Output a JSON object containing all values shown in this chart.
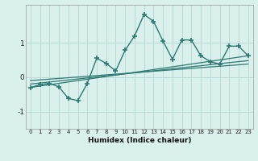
{
  "xlabel": "Humidex (Indice chaleur)",
  "bg_color": "#d9f0ed",
  "line_color": "#2d7a72",
  "grid_color": "#b8dbd7",
  "xlim": [
    -0.5,
    23.5
  ],
  "ylim": [
    -1.5,
    2.1
  ],
  "yticks": [
    -1,
    0,
    1
  ],
  "xticks": [
    0,
    1,
    2,
    3,
    4,
    5,
    6,
    7,
    8,
    9,
    10,
    11,
    12,
    13,
    14,
    15,
    16,
    17,
    18,
    19,
    20,
    21,
    22,
    23
  ],
  "series1_x": [
    0,
    1,
    2,
    3,
    4,
    5,
    6,
    7,
    8,
    9,
    10,
    11,
    12,
    13,
    14,
    15,
    16,
    17,
    18,
    19,
    20,
    21,
    22,
    23
  ],
  "series1_y": [
    -0.3,
    -0.22,
    -0.18,
    -0.28,
    -0.62,
    -0.68,
    -0.18,
    0.55,
    0.4,
    0.18,
    0.78,
    1.2,
    1.82,
    1.62,
    1.05,
    0.52,
    1.08,
    1.08,
    0.62,
    0.45,
    0.38,
    0.9,
    0.9,
    0.62
  ],
  "trend1_x": [
    0,
    23
  ],
  "trend1_y": [
    -0.3,
    0.62
  ],
  "trend2_x": [
    0,
    23
  ],
  "trend2_y": [
    -0.2,
    0.48
  ],
  "trend3_x": [
    0,
    23
  ],
  "trend3_y": [
    -0.1,
    0.38
  ]
}
